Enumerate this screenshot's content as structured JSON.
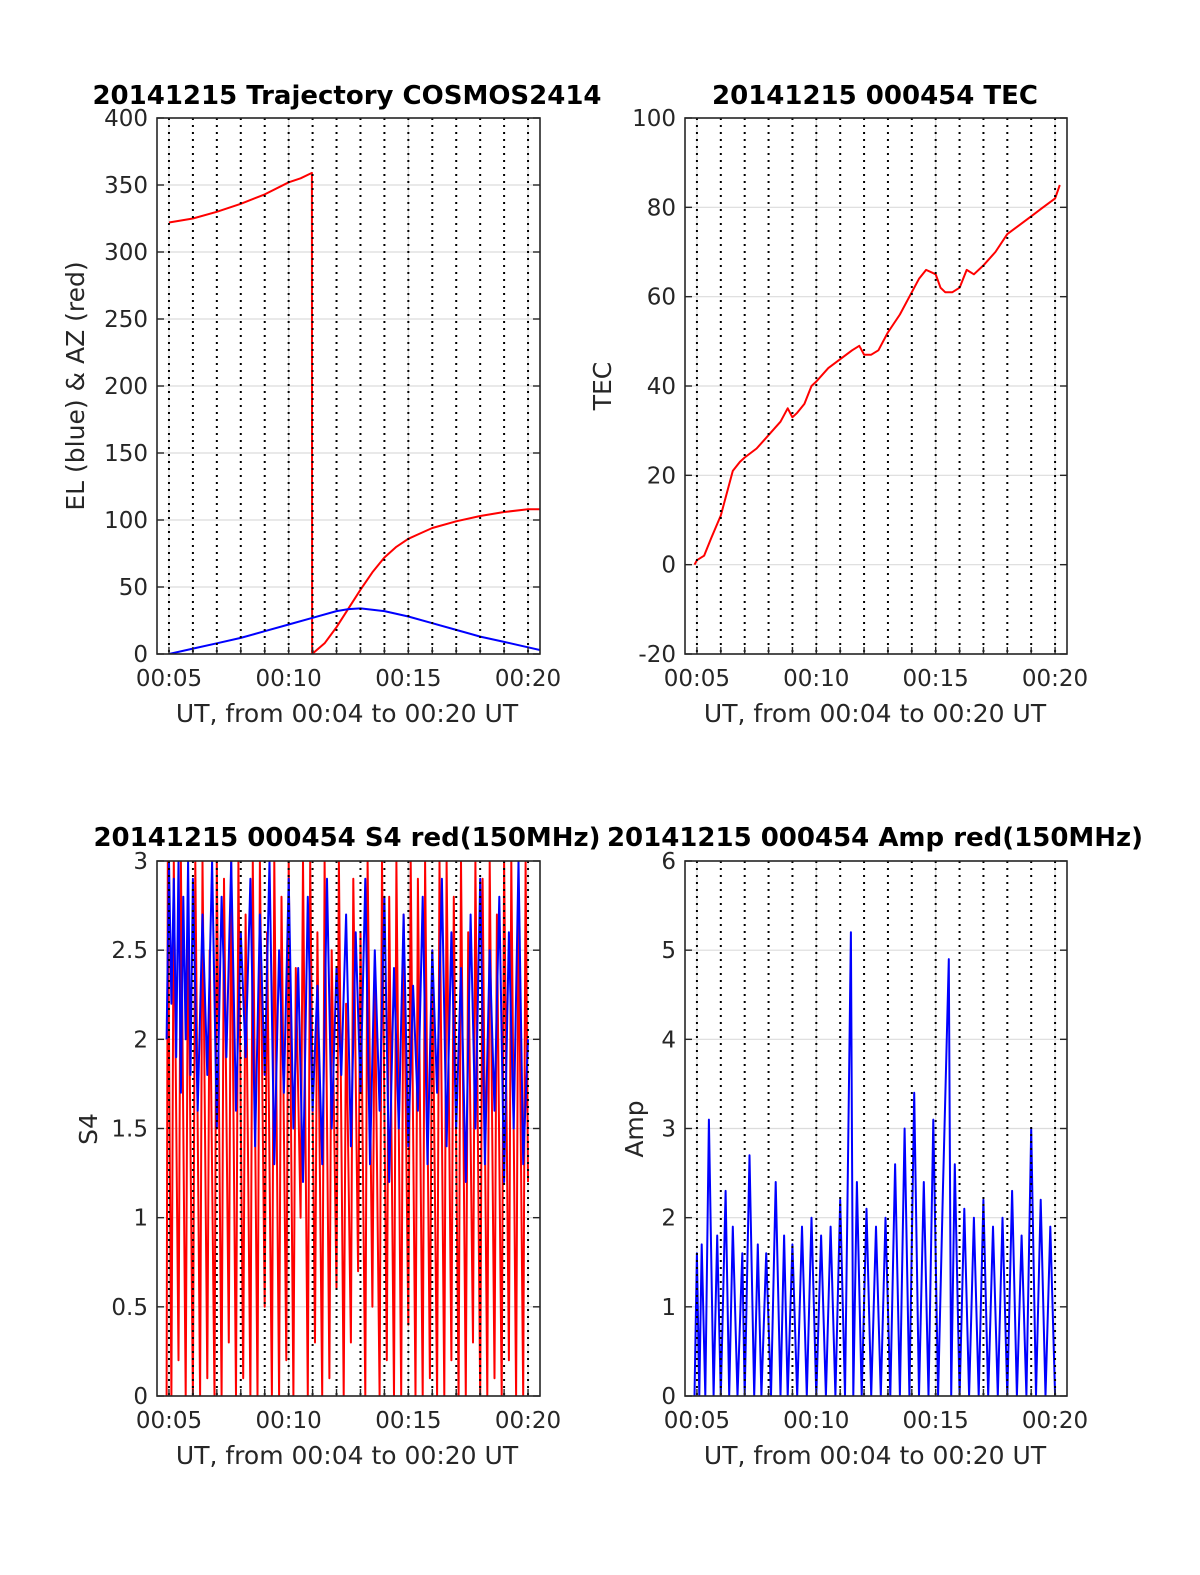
{
  "chart_data": [
    {
      "id": "traj",
      "type": "line",
      "title": "20141215 Trajectory COSMOS2414",
      "xlabel": "UT, from 00:04 to 00:20 UT",
      "ylabel": "EL (blue) & AZ (red)",
      "xlim": [
        4.5,
        20.5
      ],
      "ylim": [
        0,
        400
      ],
      "yticks": [
        0,
        50,
        100,
        150,
        200,
        250,
        300,
        350,
        400
      ],
      "ytick_labels": [
        "0",
        "50",
        "100",
        "150",
        "200",
        "250",
        "300",
        "350",
        "400"
      ],
      "xticks": [
        5,
        10,
        15,
        20
      ],
      "xtick_labels": [
        "00:05",
        "00:10",
        "00:15",
        "00:20"
      ],
      "minute_lines": [
        5,
        6,
        7,
        8,
        9,
        10,
        11,
        12,
        13,
        14,
        15,
        16,
        17,
        18,
        19,
        20
      ],
      "grid": "on",
      "series": [
        {
          "color": "#ff0000",
          "x": [
            5.0,
            6.0,
            7.0,
            8.0,
            9.0,
            10.0,
            10.5,
            10.97,
            10.98,
            11.5,
            12.0,
            12.5,
            13.0,
            13.5,
            14.0,
            14.5,
            15.0,
            15.5,
            16.0,
            17.0,
            18.0,
            19.0,
            20.0,
            20.5
          ],
          "y": [
            322,
            325,
            330,
            336,
            343,
            352,
            355,
            359,
            0,
            8,
            20,
            34,
            48,
            61,
            72,
            80,
            86,
            90,
            94,
            99,
            103,
            106,
            108,
            108
          ]
        },
        {
          "color": "#0000ff",
          "x": [
            5.0,
            6.0,
            7.0,
            8.0,
            9.0,
            10.0,
            11.0,
            12.0,
            12.5,
            13.0,
            13.5,
            14.0,
            15.0,
            16.0,
            17.0,
            18.0,
            19.0,
            20.0,
            20.5
          ],
          "y": [
            0,
            4,
            8,
            12,
            17,
            22,
            27,
            32,
            33.5,
            34,
            33,
            32,
            28,
            23,
            18,
            13,
            9,
            5,
            3
          ]
        }
      ]
    },
    {
      "id": "tec",
      "type": "line",
      "title": "20141215 000454 TEC",
      "xlabel": "UT, from 00:04 to 00:20 UT",
      "ylabel": "TEC",
      "xlim": [
        4.5,
        20.5
      ],
      "ylim": [
        -20,
        100
      ],
      "yticks": [
        -20,
        0,
        20,
        40,
        60,
        80,
        100
      ],
      "ytick_labels": [
        "-20",
        "0",
        "20",
        "40",
        "60",
        "80",
        "100"
      ],
      "xticks": [
        5,
        10,
        15,
        20
      ],
      "xtick_labels": [
        "00:05",
        "00:10",
        "00:15",
        "00:20"
      ],
      "minute_lines": [
        5,
        6,
        7,
        8,
        9,
        10,
        11,
        12,
        13,
        14,
        15,
        16,
        17,
        18,
        19,
        20
      ],
      "grid": "on",
      "series": [
        {
          "color": "#ff0000",
          "x": [
            4.9,
            5.0,
            5.3,
            5.6,
            6.0,
            6.3,
            6.5,
            6.8,
            7.0,
            7.5,
            8.0,
            8.5,
            8.8,
            9.0,
            9.2,
            9.5,
            9.8,
            10.0,
            10.5,
            11.0,
            11.5,
            11.8,
            12.0,
            12.3,
            12.6,
            13.0,
            13.5,
            14.0,
            14.3,
            14.6,
            15.0,
            15.2,
            15.4,
            15.7,
            16.0,
            16.3,
            16.6,
            17.0,
            17.5,
            18.0,
            18.5,
            19.0,
            19.5,
            20.0,
            20.2
          ],
          "y": [
            0,
            1,
            2,
            6,
            11,
            17,
            21,
            23,
            24,
            26,
            29,
            32,
            35,
            33,
            34,
            36,
            40,
            41,
            44,
            46,
            48,
            49,
            47,
            47,
            48,
            52,
            56,
            61,
            64,
            66,
            65,
            62,
            61,
            61,
            62,
            66,
            65,
            67,
            70,
            74,
            76,
            78,
            80,
            82,
            85
          ]
        }
      ]
    },
    {
      "id": "s4",
      "type": "line",
      "title": "20141215 000454 S4 red(150MHz)",
      "xlabel": "UT, from 00:04 to 00:20 UT",
      "ylabel": "S4",
      "xlim": [
        4.5,
        20.5
      ],
      "ylim": [
        0,
        3
      ],
      "yticks": [
        0,
        0.5,
        1,
        1.5,
        2,
        2.5,
        3
      ],
      "ytick_labels": [
        "0",
        "0.5",
        "1",
        "1.5",
        "2",
        "2.5",
        "3"
      ],
      "xticks": [
        5,
        10,
        15,
        20
      ],
      "xtick_labels": [
        "00:05",
        "00:10",
        "00:15",
        "00:20"
      ],
      "minute_lines": [
        5,
        6,
        7,
        8,
        9,
        10,
        11,
        12,
        13,
        14,
        15,
        16,
        17,
        18,
        19,
        20
      ],
      "grid": "on",
      "series": [
        {
          "color": "#ff0000",
          "x": [
            4.9,
            4.95,
            5.1,
            5.2,
            5.4,
            5.5,
            5.7,
            5.8,
            6.0,
            6.1,
            6.3,
            6.4,
            6.6,
            6.7,
            6.9,
            7.0,
            7.2,
            7.3,
            7.5,
            7.6,
            7.8,
            7.9,
            8.1,
            8.2,
            8.4,
            8.5,
            8.7,
            8.8,
            9.0,
            9.1,
            9.3,
            9.4,
            9.6,
            9.7,
            9.9,
            10.0,
            10.2,
            10.3,
            10.5,
            10.6,
            10.8,
            10.9,
            11.1,
            11.2,
            11.4,
            11.5,
            11.7,
            11.8,
            12.0,
            12.1,
            12.3,
            12.4,
            12.6,
            12.7,
            12.9,
            13.0,
            13.2,
            13.3,
            13.5,
            13.6,
            13.8,
            13.9,
            14.1,
            14.2,
            14.4,
            14.5,
            14.7,
            14.8,
            15.0,
            15.1,
            15.3,
            15.4,
            15.6,
            15.7,
            15.9,
            16.0,
            16.2,
            16.3,
            16.5,
            16.6,
            16.8,
            16.9,
            17.1,
            17.2,
            17.4,
            17.5,
            17.7,
            17.8,
            18.0,
            18.1,
            18.3,
            18.4,
            18.6,
            18.7,
            18.9,
            19.0,
            19.2,
            19.3,
            19.5,
            19.6,
            19.8,
            19.9,
            20.0
          ],
          "y": [
            0,
            3,
            0,
            3,
            0.2,
            3,
            0,
            2.8,
            0,
            3,
            0,
            3,
            0.1,
            2.5,
            0,
            3,
            0,
            2.9,
            0.3,
            3,
            0,
            3,
            0.1,
            2.7,
            0,
            3,
            0,
            3,
            0.5,
            2.6,
            0,
            3,
            0,
            2.8,
            0.2,
            3,
            0,
            2.4,
            1.0,
            3,
            0,
            3,
            0.3,
            2.6,
            0,
            3,
            0.1,
            2.5,
            0.6,
            3,
            0,
            2.2,
            0.3,
            2.9,
            0.7,
            2.6,
            0,
            3,
            0.5,
            2.4,
            0,
            3,
            0.2,
            2.8,
            0,
            3,
            0,
            2.7,
            0.4,
            3,
            0,
            2.9,
            0,
            3,
            0.1,
            2.5,
            0,
            3,
            0,
            3,
            0.2,
            2.8,
            0,
            3,
            0,
            2.6,
            0.3,
            3,
            0,
            2.9,
            0,
            3,
            0.1,
            2.7,
            0,
            3,
            0.2,
            3,
            0,
            2.8,
            0,
            3,
            1.2
          ]
        },
        {
          "color": "#0000ff",
          "x": [
            4.9,
            5.0,
            5.1,
            5.2,
            5.3,
            5.4,
            5.5,
            5.6,
            5.7,
            5.8,
            5.9,
            6.0,
            6.2,
            6.4,
            6.6,
            6.8,
            7.0,
            7.2,
            7.4,
            7.6,
            7.8,
            8.0,
            8.2,
            8.4,
            8.6,
            8.8,
            9.0,
            9.2,
            9.4,
            9.6,
            9.8,
            10.0,
            10.2,
            10.4,
            10.6,
            10.8,
            11.0,
            11.2,
            11.4,
            11.6,
            11.8,
            12.0,
            12.2,
            12.4,
            12.6,
            12.8,
            13.0,
            13.2,
            13.4,
            13.6,
            13.8,
            14.0,
            14.2,
            14.4,
            14.6,
            14.8,
            15.0,
            15.2,
            15.4,
            15.6,
            15.8,
            16.0,
            16.2,
            16.4,
            16.6,
            16.8,
            17.0,
            17.2,
            17.4,
            17.6,
            17.8,
            18.0,
            18.2,
            18.4,
            18.6,
            18.8,
            19.0,
            19.2,
            19.4,
            19.6,
            19.8,
            20.0
          ],
          "y": [
            2.0,
            3.0,
            2.2,
            2.9,
            1.9,
            3.0,
            1.7,
            2.8,
            2.0,
            3.0,
            1.8,
            2.9,
            1.6,
            2.7,
            1.8,
            3.0,
            1.5,
            2.8,
            1.9,
            3.0,
            1.6,
            2.6,
            1.9,
            2.9,
            1.4,
            2.7,
            1.8,
            3.0,
            1.3,
            2.5,
            1.7,
            2.9,
            1.5,
            2.4,
            1.2,
            2.8,
            1.6,
            2.3,
            1.3,
            2.9,
            1.5,
            2.4,
            1.8,
            2.7,
            1.4,
            2.6,
            1.7,
            2.9,
            1.3,
            2.5,
            1.6,
            2.8,
            1.2,
            2.4,
            1.5,
            2.7,
            1.4,
            2.3,
            1.6,
            2.8,
            1.3,
            2.5,
            1.7,
            2.9,
            1.4,
            2.6,
            1.5,
            2.4,
            1.2,
            2.7,
            1.5,
            2.9,
            1.3,
            2.5,
            1.6,
            2.8,
            1.2,
            2.6,
            1.5,
            3.0,
            1.3,
            2.0
          ]
        }
      ]
    },
    {
      "id": "amp",
      "type": "line",
      "title": "20141215 000454 Amp red(150MHz)",
      "xlabel": "UT, from 00:04 to 00:20 UT",
      "ylabel": "Amp",
      "xlim": [
        4.5,
        20.5
      ],
      "ylim": [
        0,
        6
      ],
      "yticks": [
        0,
        1,
        2,
        3,
        4,
        5,
        6
      ],
      "ytick_labels": [
        "0",
        "1",
        "2",
        "3",
        "4",
        "5",
        "6"
      ],
      "xticks": [
        5,
        10,
        15,
        20
      ],
      "xtick_labels": [
        "00:05",
        "00:10",
        "00:15",
        "00:20"
      ],
      "minute_lines": [
        5,
        6,
        7,
        8,
        9,
        10,
        11,
        12,
        13,
        14,
        15,
        16,
        17,
        18,
        19,
        20
      ],
      "grid": "on",
      "series": [
        {
          "color": "#0000ff",
          "x": [
            4.9,
            5.0,
            5.1,
            5.2,
            5.35,
            5.5,
            5.7,
            5.85,
            6.0,
            6.2,
            6.35,
            6.5,
            6.7,
            6.9,
            7.0,
            7.2,
            7.4,
            7.55,
            7.7,
            7.9,
            8.1,
            8.3,
            8.5,
            8.65,
            8.8,
            9.0,
            9.2,
            9.4,
            9.6,
            9.8,
            10.0,
            10.2,
            10.4,
            10.6,
            10.8,
            11.0,
            11.2,
            11.45,
            11.55,
            11.7,
            11.9,
            12.1,
            12.3,
            12.5,
            12.7,
            12.9,
            13.1,
            13.3,
            13.5,
            13.7,
            13.9,
            14.1,
            14.3,
            14.5,
            14.7,
            14.9,
            15.1,
            15.3,
            15.55,
            15.65,
            15.8,
            16.0,
            16.2,
            16.4,
            16.6,
            16.8,
            17.0,
            17.2,
            17.4,
            17.6,
            17.8,
            18.0,
            18.2,
            18.4,
            18.6,
            18.8,
            19.0,
            19.2,
            19.4,
            19.6,
            19.8,
            20.0
          ],
          "y": [
            0,
            1.6,
            0,
            1.7,
            0,
            3.1,
            0,
            1.8,
            0,
            2.3,
            0,
            1.9,
            0,
            1.6,
            0,
            2.7,
            0,
            1.7,
            0,
            1.6,
            0,
            2.4,
            0,
            1.8,
            0,
            1.7,
            0,
            1.9,
            0,
            2.0,
            0,
            1.8,
            0,
            1.9,
            0,
            2.2,
            0,
            5.2,
            0,
            2.4,
            0,
            2.1,
            0,
            1.9,
            0,
            2.0,
            0,
            2.6,
            0,
            3.0,
            0,
            3.4,
            0,
            2.4,
            0,
            3.1,
            0,
            2.3,
            4.9,
            0,
            2.6,
            0,
            2.1,
            0,
            2.0,
            0,
            2.2,
            0,
            1.9,
            0,
            2.0,
            0,
            2.3,
            0,
            1.8,
            0,
            3.0,
            0,
            2.2,
            0,
            1.9,
            0
          ]
        }
      ]
    }
  ]
}
